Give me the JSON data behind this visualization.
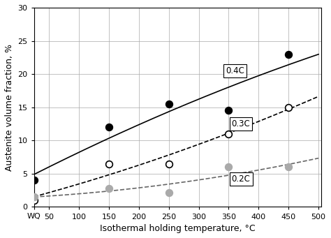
{
  "xlabel": "Isothermal holding temperature, °C",
  "ylabel": "Austenite volume fraction, %",
  "xlim": [
    25,
    505
  ],
  "ylim": [
    0,
    30
  ],
  "yticks": [
    0,
    5,
    10,
    15,
    20,
    25,
    30
  ],
  "xticks": [
    50,
    100,
    150,
    200,
    250,
    300,
    350,
    400,
    450,
    500
  ],
  "series": [
    {
      "label": "0.4C",
      "x": [
        25,
        150,
        250,
        350,
        450
      ],
      "y": [
        4.0,
        12.0,
        15.5,
        14.5,
        23.0
      ],
      "marker": "o",
      "markersize": 7,
      "facecolor": "#000000",
      "edgecolor": "#000000",
      "linestyle": "-",
      "linecolor": "#000000",
      "annotation": "0.4C",
      "ann_x": 345,
      "ann_y": 20.5,
      "poly_deg": 2
    },
    {
      "label": "0.3C",
      "x": [
        25,
        150,
        250,
        350,
        450
      ],
      "y": [
        1.0,
        6.5,
        6.5,
        11.0,
        15.0
      ],
      "marker": "o",
      "markersize": 7,
      "facecolor": "#ffffff",
      "edgecolor": "#000000",
      "linestyle": "--",
      "linecolor": "#000000",
      "annotation": "0.3C",
      "ann_x": 355,
      "ann_y": 12.5,
      "poly_deg": 2
    },
    {
      "label": "0.2C",
      "x": [
        25,
        150,
        250,
        350,
        450
      ],
      "y": [
        1.5,
        2.8,
        2.2,
        6.0,
        6.0
      ],
      "marker": "o",
      "markersize": 7,
      "facecolor": "#aaaaaa",
      "edgecolor": "#aaaaaa",
      "linestyle": "--",
      "linecolor": "#666666",
      "annotation": "0.2C",
      "ann_x": 355,
      "ann_y": 4.2,
      "poly_deg": 2
    }
  ],
  "wq_label": "WQ",
  "background_color": "#ffffff",
  "grid_color": "#aaaaaa"
}
